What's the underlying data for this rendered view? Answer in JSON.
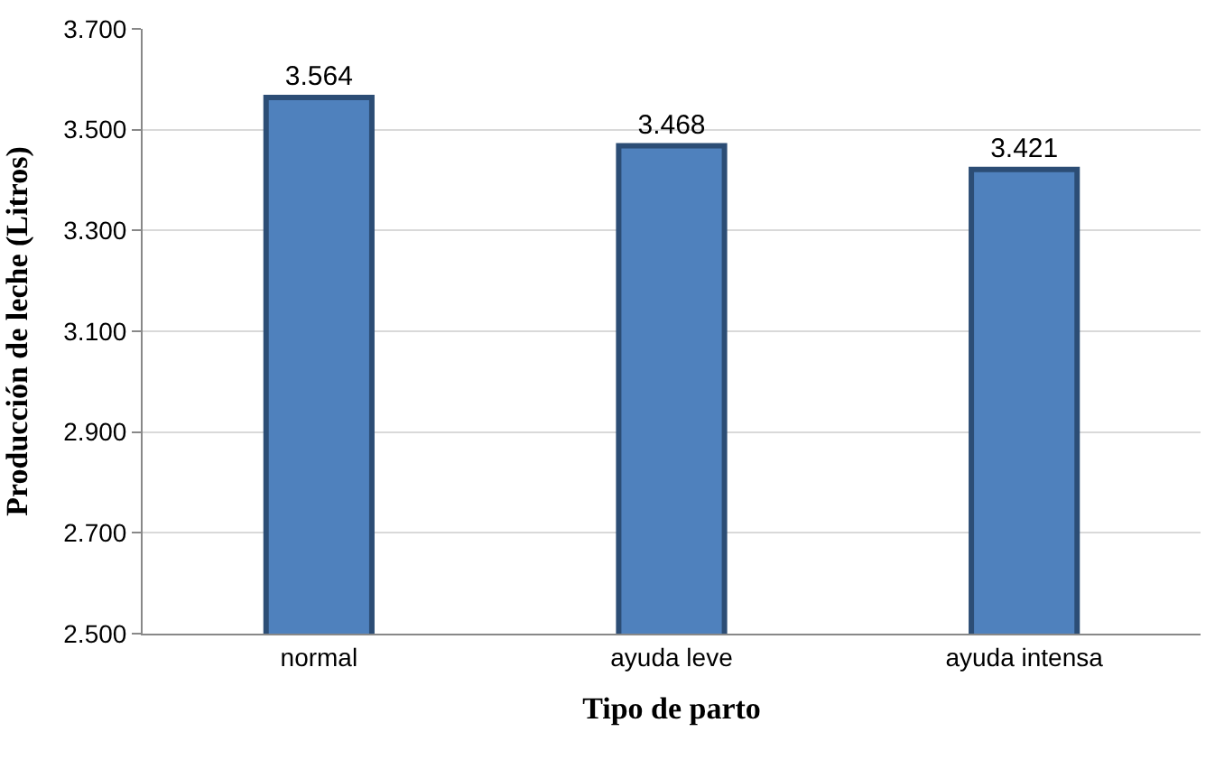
{
  "chart_data": {
    "type": "bar",
    "categories": [
      "normal",
      "ayuda leve",
      "ayuda intensa"
    ],
    "values": [
      3564,
      3468,
      3421
    ],
    "value_labels": [
      "3.564",
      "3.468",
      "3.421"
    ],
    "color": "#4f81bd",
    "xlabel": "Tipo de parto",
    "ylabel": "Producción de leche (Litros)",
    "ylim": [
      2500,
      3700
    ],
    "yticks": [
      {
        "value": 2500,
        "label": "2.500"
      },
      {
        "value": 2700,
        "label": "2.700"
      },
      {
        "value": 2900,
        "label": "2.900"
      },
      {
        "value": 3100,
        "label": "3.100"
      },
      {
        "value": 3300,
        "label": "3.300"
      },
      {
        "value": 3500,
        "label": "3.500"
      },
      {
        "value": 3700,
        "label": "3.700"
      }
    ],
    "grid": "y"
  }
}
